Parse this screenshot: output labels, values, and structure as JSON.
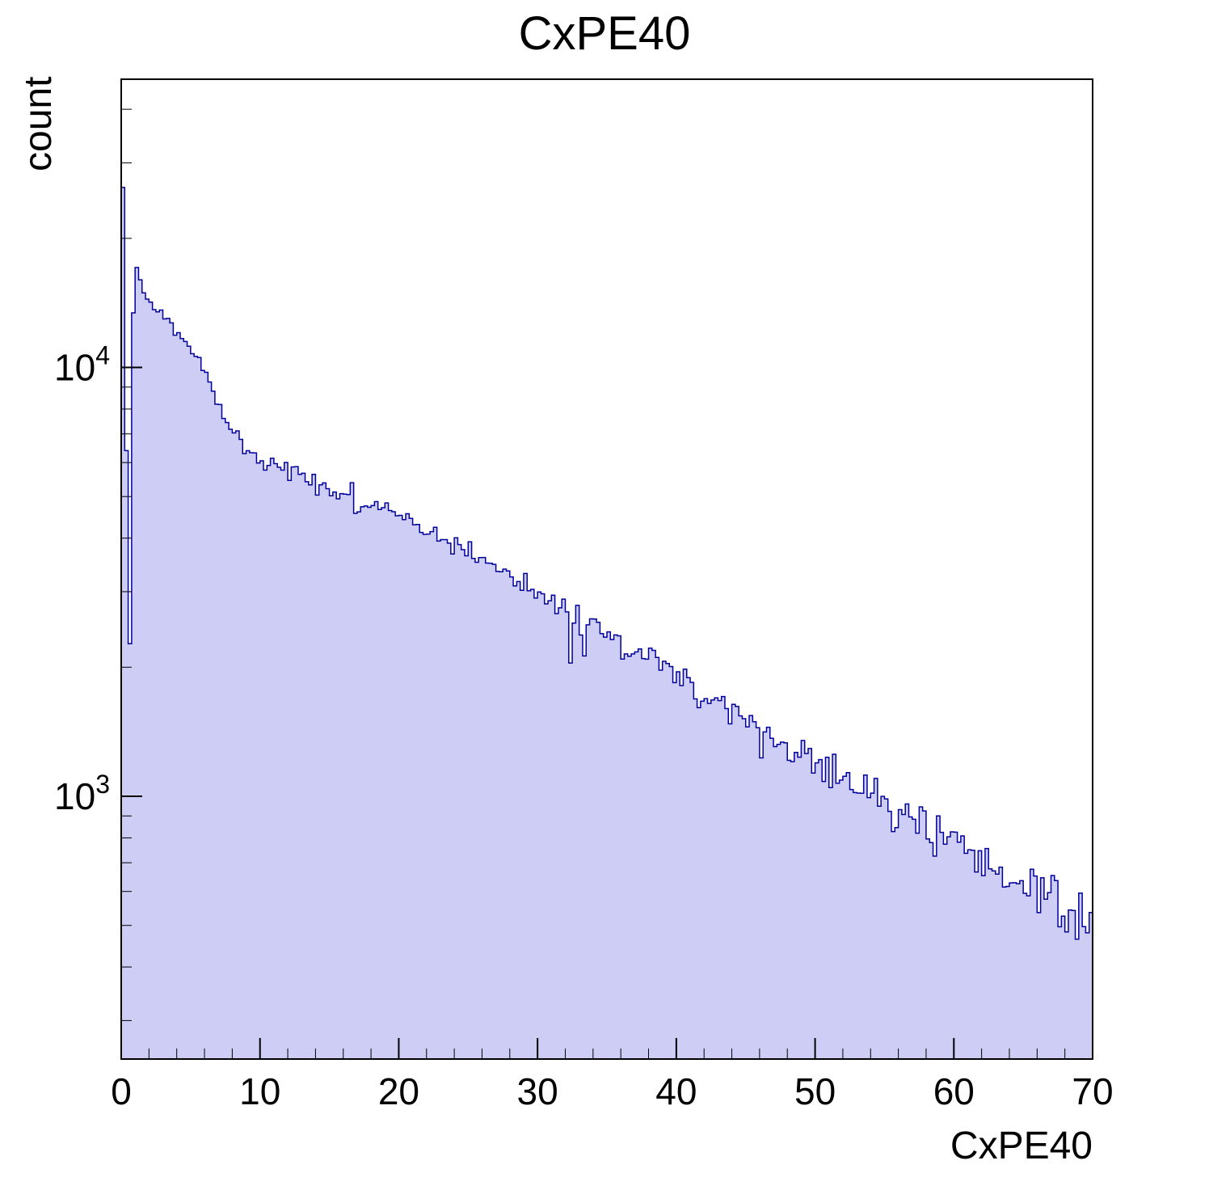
{
  "chart_data": {
    "type": "histogram",
    "title": "CxPE40",
    "xlabel": "CxPE40",
    "ylabel": "count",
    "xlim": [
      0,
      70
    ],
    "ylim": [
      244,
      47000
    ],
    "yscale": "log",
    "x_major_ticks": [
      0,
      10,
      20,
      30,
      40,
      50,
      60,
      70
    ],
    "x_minor_step": 2,
    "y_major_ticks": [
      1000,
      10000
    ],
    "y_major_tick_labels": [
      "10^3",
      "10^4"
    ],
    "grid": false,
    "legend": null,
    "bin_width": 0.25,
    "fill_color": "#cdcdf6",
    "line_color": "#00009c",
    "frame_color": "#000000",
    "noise": {
      "seed": 42,
      "poisson_scale": 1.8
    },
    "envelope": [
      [
        0.125,
        26000
      ],
      [
        0.375,
        6500
      ],
      [
        0.625,
        2200
      ],
      [
        0.875,
        13500
      ],
      [
        1.125,
        17200
      ],
      [
        1.375,
        16200
      ],
      [
        1.625,
        15200
      ],
      [
        2,
        14300
      ],
      [
        2.5,
        13800
      ],
      [
        3,
        13400
      ],
      [
        3.5,
        12700
      ],
      [
        4,
        12100
      ],
      [
        4.5,
        11500
      ],
      [
        5,
        10900
      ],
      [
        5.5,
        10400
      ],
      [
        6,
        9900
      ],
      [
        6.5,
        9000
      ],
      [
        7,
        8200
      ],
      [
        7.5,
        7500
      ],
      [
        8,
        7000
      ],
      [
        8.375,
        7400
      ],
      [
        8.625,
        6600
      ],
      [
        9,
        6450
      ],
      [
        9.5,
        6300
      ],
      [
        10,
        6150
      ],
      [
        11,
        5900
      ],
      [
        12,
        5700
      ],
      [
        13,
        5550
      ],
      [
        14,
        5380
      ],
      [
        15,
        5220
      ],
      [
        16,
        5050
      ],
      [
        16.625,
        5300
      ],
      [
        16.875,
        4400
      ],
      [
        17.125,
        4850
      ],
      [
        18,
        4700
      ],
      [
        19,
        4580
      ],
      [
        20,
        4470
      ],
      [
        21,
        4330
      ],
      [
        22,
        4180
      ],
      [
        23,
        4030
      ],
      [
        24,
        3880
      ],
      [
        25,
        3730
      ],
      [
        26,
        3580
      ],
      [
        27,
        3430
      ],
      [
        28,
        3280
      ],
      [
        29,
        3130
      ],
      [
        30,
        2980
      ],
      [
        31,
        2830
      ],
      [
        32,
        2620
      ],
      [
        32.375,
        2150
      ],
      [
        32.875,
        2700
      ],
      [
        33.375,
        2250
      ],
      [
        33.875,
        2600
      ],
      [
        34.5,
        2420
      ],
      [
        35,
        2360
      ],
      [
        36,
        2260
      ],
      [
        37,
        2170
      ],
      [
        38,
        2100
      ],
      [
        39,
        2010
      ],
      [
        40,
        1910
      ],
      [
        41,
        1810
      ],
      [
        42,
        1730
      ],
      [
        43,
        1650
      ],
      [
        44,
        1570
      ],
      [
        45,
        1500
      ],
      [
        46,
        1430
      ],
      [
        47,
        1360
      ],
      [
        48,
        1300
      ],
      [
        49,
        1250
      ],
      [
        50,
        1200
      ],
      [
        51,
        1150
      ],
      [
        52,
        1100
      ],
      [
        53,
        1050
      ],
      [
        54,
        1000
      ],
      [
        55,
        960
      ],
      [
        56,
        920
      ],
      [
        57,
        880
      ],
      [
        58,
        840
      ],
      [
        59,
        805
      ],
      [
        60,
        770
      ],
      [
        61,
        740
      ],
      [
        62,
        705
      ],
      [
        63,
        675
      ],
      [
        64,
        645
      ],
      [
        65,
        615
      ],
      [
        66,
        585
      ],
      [
        67,
        560
      ],
      [
        68,
        535
      ],
      [
        69,
        510
      ],
      [
        70,
        490
      ]
    ]
  }
}
